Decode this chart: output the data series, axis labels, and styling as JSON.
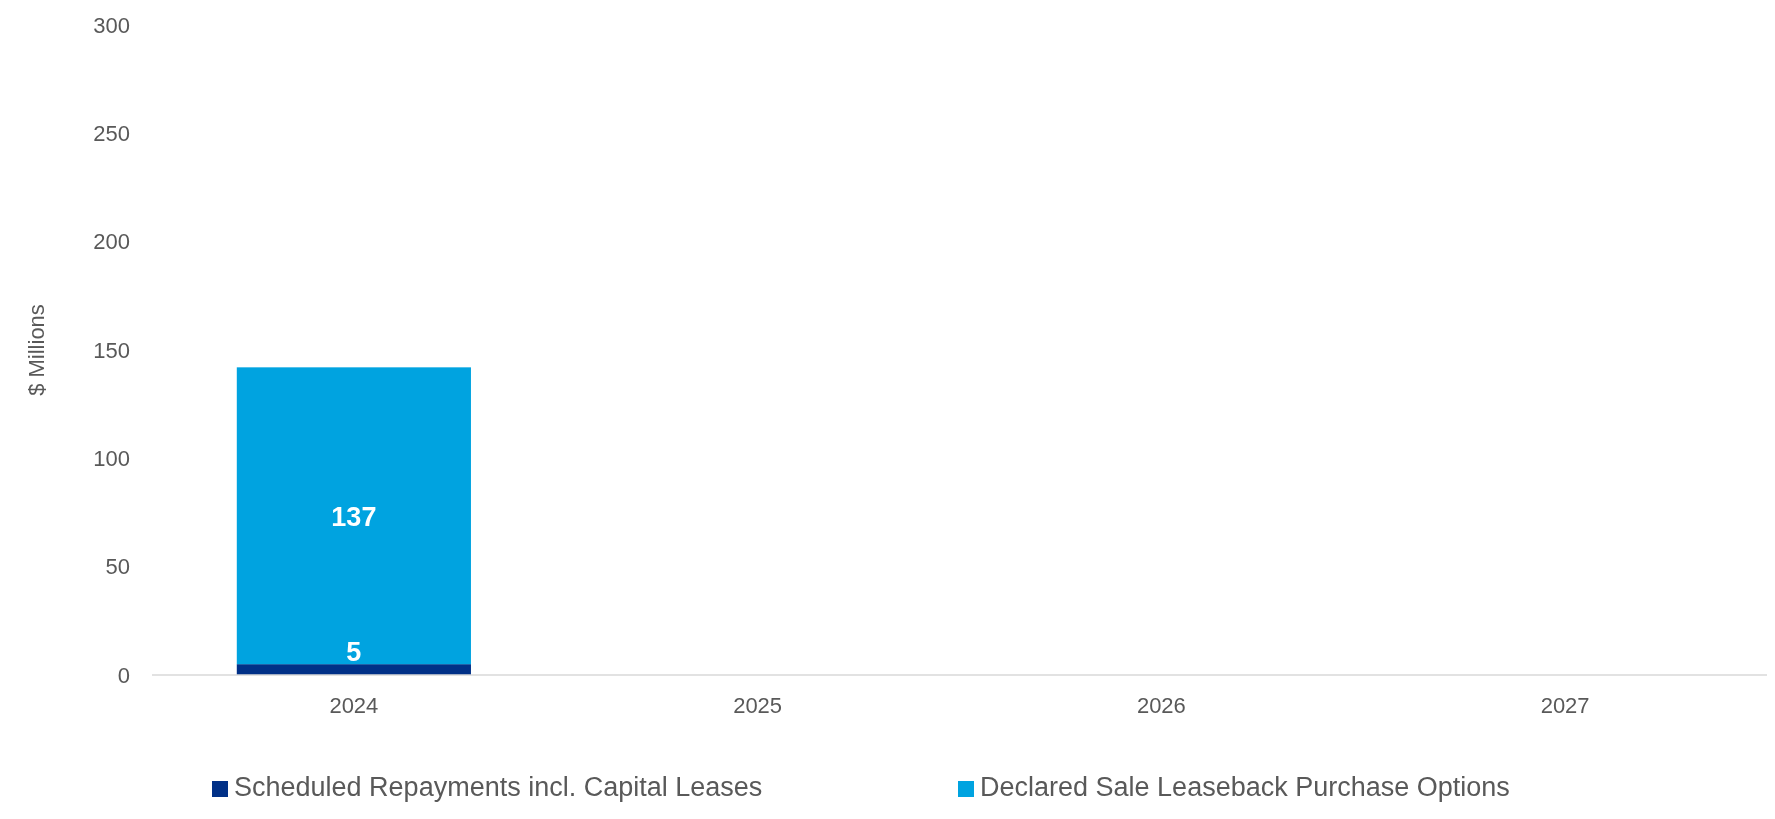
{
  "chart_data": {
    "type": "bar",
    "ylabel": "$ Millions",
    "categories": [
      "2024",
      "2025",
      "2026",
      "2027"
    ],
    "stacked": true,
    "series": [
      {
        "name": "Scheduled Repayments incl. Capital Leases",
        "color": "#003087",
        "values": [
          5,
          null,
          null,
          null
        ]
      },
      {
        "name": "Declared Sale Leaseback Purchase Options",
        "color": "#00a3e0",
        "values": [
          137,
          null,
          null,
          null
        ]
      }
    ],
    "ylim": [
      0,
      300
    ],
    "yticks": [
      0,
      50,
      100,
      150,
      200,
      250,
      300
    ],
    "data_labels": true,
    "grid": false,
    "legend": "bottom"
  }
}
